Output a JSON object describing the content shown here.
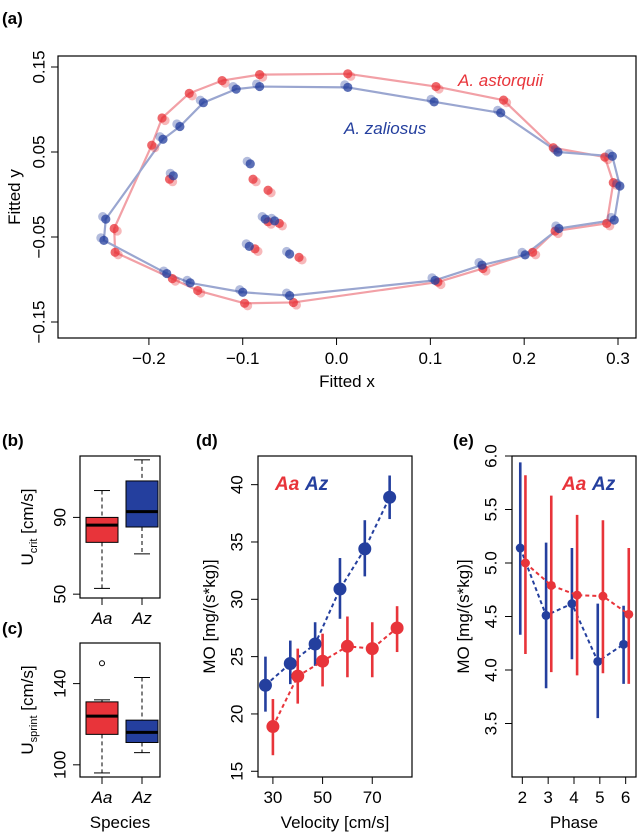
{
  "colors": {
    "aa": "#e8343a",
    "az": "#243f9e",
    "aa_light": "#f2a0a6",
    "az_light": "#9aa6d0"
  },
  "chart_data": [
    {
      "panel": "(a)",
      "type": "scatter",
      "xlabel": "Fitted x",
      "ylabel": "Fitted y",
      "xlim": [
        -0.26,
        0.31
      ],
      "ylim": [
        -0.155,
        0.16
      ],
      "xticks": [
        "−0.2",
        "−0.1",
        "0.0",
        "0.1",
        "0.2",
        "0.3"
      ],
      "xtick_values": [
        -0.2,
        -0.1,
        0.0,
        0.1,
        0.2,
        0.3
      ],
      "yticks": [
        "−0.15",
        "−0.05",
        "0.05",
        "0.15"
      ],
      "ytick_values": [
        -0.15,
        -0.05,
        0.05,
        0.15
      ],
      "series": [
        {
          "name": "A. astorquii",
          "outline": [
            [
              -0.082,
              0.141
            ],
            [
              0.012,
              0.142
            ],
            [
              0.106,
              0.127
            ],
            [
              0.178,
              0.111
            ],
            [
              0.231,
              0.055
            ],
            [
              0.286,
              0.044
            ],
            [
              0.295,
              0.014
            ],
            [
              0.288,
              -0.034
            ],
            [
              0.233,
              -0.043
            ],
            [
              0.209,
              -0.068
            ],
            [
              0.156,
              -0.087
            ],
            [
              0.108,
              -0.103
            ],
            [
              -0.046,
              -0.127
            ],
            [
              -0.098,
              -0.128
            ],
            [
              -0.148,
              -0.113
            ],
            [
              -0.175,
              -0.099
            ],
            [
              -0.236,
              -0.068
            ],
            [
              -0.237,
              -0.04
            ],
            [
              -0.197,
              0.058
            ],
            [
              -0.186,
              0.09
            ],
            [
              -0.157,
              0.119
            ],
            [
              -0.122,
              0.134
            ]
          ],
          "interior": [
            [
              -0.178,
              0.018
            ],
            [
              -0.089,
              0.018
            ],
            [
              -0.073,
              0.005
            ],
            [
              -0.073,
              -0.032
            ],
            [
              -0.061,
              -0.034
            ],
            [
              -0.087,
              -0.064
            ],
            [
              -0.04,
              -0.074
            ]
          ]
        },
        {
          "name": "A. zaliosus",
          "outline": [
            [
              -0.082,
              0.127
            ],
            [
              0.012,
              0.126
            ],
            [
              0.104,
              0.109
            ],
            [
              0.175,
              0.096
            ],
            [
              0.236,
              0.05
            ],
            [
              0.294,
              0.045
            ],
            [
              0.302,
              0.01
            ],
            [
              0.296,
              -0.03
            ],
            [
              0.237,
              -0.04
            ],
            [
              0.201,
              -0.071
            ],
            [
              0.155,
              -0.083
            ],
            [
              0.105,
              -0.101
            ],
            [
              -0.05,
              -0.119
            ],
            [
              -0.1,
              -0.115
            ],
            [
              -0.156,
              -0.104
            ],
            [
              -0.181,
              -0.093
            ],
            [
              -0.248,
              -0.054
            ],
            [
              -0.246,
              -0.029
            ],
            [
              -0.185,
              0.065
            ],
            [
              -0.167,
              0.08
            ],
            [
              -0.142,
              0.108
            ],
            [
              -0.107,
              0.124
            ]
          ],
          "interior": [
            [
              -0.174,
              0.022
            ],
            [
              -0.092,
              0.036
            ],
            [
              -0.076,
              -0.029
            ],
            [
              -0.066,
              -0.031
            ],
            [
              -0.093,
              -0.061
            ],
            [
              -0.05,
              -0.07
            ]
          ]
        }
      ],
      "annotations": [
        "A. astorquii",
        "A. zaliosus"
      ]
    },
    {
      "panel": "(b)",
      "type": "box",
      "xlabel": "",
      "ylabel_main": "U",
      "ylabel_sub": "crit",
      "ylabel_unit": " [cm/s]",
      "categories": [
        "Aa",
        "Az"
      ],
      "ylim": [
        48,
        122
      ],
      "yticks": [
        "50",
        "90"
      ],
      "ytick_values": [
        50,
        90
      ],
      "boxes": [
        {
          "min": 53,
          "q1": 77,
          "median": 86,
          "q3": 90,
          "max": 104
        },
        {
          "min": 71,
          "q1": 85,
          "median": 93,
          "q3": 109,
          "max": 120
        }
      ]
    },
    {
      "panel": "(c)",
      "type": "box",
      "xlabel": "Species",
      "ylabel_main": "U",
      "ylabel_sub": "sprint",
      "ylabel_unit": " [cm/s]",
      "categories": [
        "Aa",
        "Az"
      ],
      "ylim": [
        94,
        160
      ],
      "yticks": [
        "100",
        "140"
      ],
      "ytick_values": [
        100,
        140
      ],
      "boxes": [
        {
          "min": 96,
          "q1": 115,
          "median": 124,
          "q3": 131,
          "max": 132,
          "outliers": [
            150
          ]
        },
        {
          "min": 106,
          "q1": 111,
          "median": 116,
          "q3": 122,
          "max": 143
        }
      ]
    },
    {
      "panel": "(d)",
      "type": "line",
      "xlabel": "Velocity [cm/s]",
      "ylabel": "MO [mg/(s*kg)]",
      "xlim": [
        24,
        86
      ],
      "ylim": [
        14.5,
        42.5
      ],
      "xticks": [
        "30",
        "50",
        "70"
      ],
      "xtick_values": [
        30,
        50,
        70
      ],
      "yticks": [
        "15",
        "20",
        "25",
        "30",
        "35",
        "40"
      ],
      "ytick_values": [
        15,
        20,
        25,
        30,
        35,
        40
      ],
      "legend": [
        "Aa",
        "Az"
      ],
      "series": [
        {
          "name": "Aa",
          "x": [
            30,
            40,
            50,
            60,
            70,
            80
          ],
          "y": [
            18.9,
            23.3,
            24.6,
            25.9,
            25.7,
            27.5
          ],
          "lo": [
            16.4,
            20.9,
            22.4,
            23.2,
            23.2,
            25.4
          ],
          "hi": [
            21.3,
            25.7,
            27.0,
            28.5,
            28.0,
            29.4
          ]
        },
        {
          "name": "Az",
          "x": [
            27,
            37,
            47,
            57,
            67,
            77
          ],
          "y": [
            22.5,
            24.4,
            26.1,
            30.9,
            34.4,
            38.9
          ],
          "lo": [
            20.2,
            22.6,
            24.2,
            28.3,
            32.0,
            37.0
          ],
          "hi": [
            25.0,
            26.4,
            28.0,
            33.6,
            36.9,
            40.8
          ]
        }
      ]
    },
    {
      "panel": "(e)",
      "type": "line",
      "xlabel": "Phase",
      "ylabel": "MO [mg/(s*kg)]",
      "xlim": [
        1.6,
        6.4
      ],
      "ylim": [
        3.0,
        6.0
      ],
      "xticks": [
        "2",
        "3",
        "4",
        "5",
        "6"
      ],
      "xtick_values": [
        2,
        3,
        4,
        5,
        6
      ],
      "yticks": [
        "3.5",
        "4.0",
        "4.5",
        "5.0",
        "5.5",
        "6.0"
      ],
      "ytick_values": [
        3.5,
        4.0,
        4.5,
        5.0,
        5.5,
        6.0
      ],
      "legend": [
        "Aa",
        "Az"
      ],
      "series": [
        {
          "name": "Aa",
          "x": [
            2.12,
            3.12,
            4.12,
            5.12,
            6.12
          ],
          "y": [
            5.0,
            4.79,
            4.7,
            4.69,
            4.52
          ],
          "lo": [
            4.15,
            3.98,
            3.95,
            3.97,
            3.87
          ],
          "hi": [
            5.82,
            5.63,
            5.45,
            5.4,
            5.14
          ]
        },
        {
          "name": "Az",
          "x": [
            1.92,
            2.92,
            3.92,
            4.92,
            5.92
          ],
          "y": [
            5.14,
            4.51,
            4.62,
            4.08,
            4.24
          ],
          "lo": [
            4.33,
            3.83,
            4.1,
            3.55,
            3.87
          ],
          "hi": [
            5.94,
            5.19,
            5.14,
            4.62,
            4.6
          ]
        }
      ]
    }
  ]
}
